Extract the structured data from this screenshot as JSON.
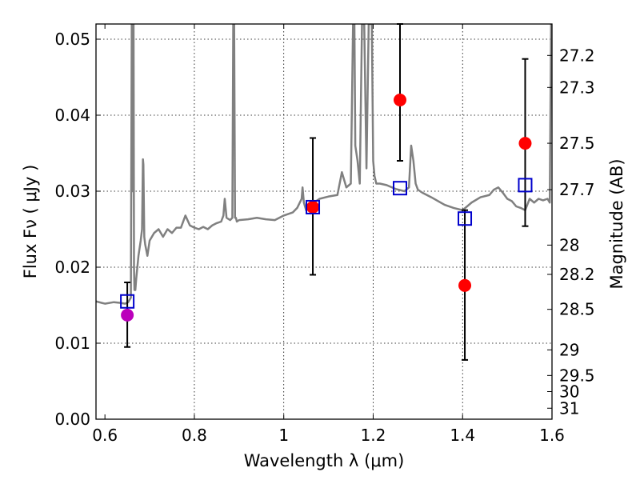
{
  "chart_data": {
    "type": "scatter",
    "xlabel": "Wavelength  λ (μm)",
    "ylabel": "Flux  Fν  ( μJy )",
    "ylabel_right": "Magnitude (AB)",
    "xlim": [
      0.58,
      1.6
    ],
    "ylim": [
      0.0,
      0.052
    ],
    "x_ticks": [
      0.6,
      0.8,
      1.0,
      1.2,
      1.4,
      1.6
    ],
    "x_tick_labels": [
      "0.6",
      "0.8",
      "1",
      "1.2",
      "1.4",
      "1.6"
    ],
    "y_ticks": [
      0.0,
      0.01,
      0.02,
      0.03,
      0.04,
      0.05
    ],
    "y_tick_labels": [
      "0.00",
      "0.01",
      "0.02",
      "0.03",
      "0.04",
      "0.05"
    ],
    "right_ticks": [
      {
        "label": "27.2",
        "value": 27.2
      },
      {
        "label": "27.3",
        "value": 27.3
      },
      {
        "label": "27.5",
        "value": 27.5
      },
      {
        "label": "27.7",
        "value": 27.7
      },
      {
        "label": "28",
        "value": 28.0
      },
      {
        "label": "28.2",
        "value": 28.2
      },
      {
        "label": "28.5",
        "value": 28.5
      },
      {
        "label": "29",
        "value": 29.0
      },
      {
        "label": "29.5",
        "value": 29.5
      },
      {
        "label": "30",
        "value": 30.0
      },
      {
        "label": "31",
        "value": 31.0
      }
    ],
    "grid": true,
    "colors": {
      "model": "#808080",
      "observed": "#ff0000",
      "observed_blue": "#bb00bb",
      "synthetic": "#0000cc",
      "errorbar": "#000000"
    },
    "series": [
      {
        "kind": "line",
        "x": [
          0.58,
          0.6,
          0.62,
          0.635,
          0.645,
          0.652,
          0.655,
          0.658,
          0.66,
          0.661,
          0.662,
          0.663,
          0.664,
          0.665,
          0.666,
          0.668,
          0.67,
          0.675,
          0.68,
          0.683,
          0.685,
          0.686,
          0.688,
          0.69,
          0.695,
          0.7,
          0.71,
          0.72,
          0.73,
          0.74,
          0.75,
          0.76,
          0.77,
          0.78,
          0.79,
          0.8,
          0.81,
          0.82,
          0.83,
          0.84,
          0.85,
          0.86,
          0.865,
          0.868,
          0.872,
          0.88,
          0.885,
          0.887,
          0.889,
          0.891,
          0.893,
          0.895,
          0.9,
          0.92,
          0.94,
          0.96,
          0.98,
          1.0,
          1.02,
          1.03,
          1.04,
          1.042,
          1.045,
          1.05,
          1.06,
          1.08,
          1.1,
          1.12,
          1.13,
          1.14,
          1.15,
          1.155,
          1.158,
          1.16,
          1.165,
          1.17,
          1.175,
          1.18,
          1.185,
          1.19,
          1.193,
          1.197,
          1.2,
          1.203,
          1.207,
          1.215,
          1.23,
          1.25,
          1.27,
          1.28,
          1.285,
          1.29,
          1.295,
          1.3,
          1.31,
          1.33,
          1.36,
          1.38,
          1.4,
          1.42,
          1.44,
          1.46,
          1.47,
          1.48,
          1.49,
          1.5,
          1.51,
          1.52,
          1.53,
          1.54,
          1.55,
          1.56,
          1.57,
          1.58,
          1.59,
          1.595,
          1.598,
          1.6
        ],
        "y": [
          0.0155,
          0.0152,
          0.0154,
          0.0153,
          0.0152,
          0.0154,
          0.0157,
          0.016,
          0.052,
          0.052,
          0.03,
          0.052,
          0.052,
          0.02,
          0.017,
          0.017,
          0.0185,
          0.0215,
          0.0235,
          0.025,
          0.0342,
          0.0335,
          0.024,
          0.023,
          0.0215,
          0.0235,
          0.0245,
          0.025,
          0.024,
          0.025,
          0.0245,
          0.0252,
          0.0252,
          0.0268,
          0.0255,
          0.0252,
          0.025,
          0.0253,
          0.025,
          0.0255,
          0.0258,
          0.026,
          0.0268,
          0.029,
          0.0265,
          0.0262,
          0.0265,
          0.052,
          0.052,
          0.0265,
          0.0265,
          0.026,
          0.0262,
          0.0263,
          0.0265,
          0.0263,
          0.0262,
          0.0268,
          0.0272,
          0.0278,
          0.029,
          0.0305,
          0.0285,
          0.0275,
          0.0282,
          0.029,
          0.0293,
          0.0295,
          0.0325,
          0.0305,
          0.031,
          0.052,
          0.052,
          0.036,
          0.034,
          0.031,
          0.052,
          0.052,
          0.033,
          0.052,
          0.052,
          0.052,
          0.034,
          0.032,
          0.031,
          0.031,
          0.0308,
          0.0303,
          0.03,
          0.0305,
          0.036,
          0.034,
          0.031,
          0.0302,
          0.0298,
          0.0292,
          0.0282,
          0.0278,
          0.0275,
          0.0285,
          0.0292,
          0.0295,
          0.0302,
          0.0305,
          0.0298,
          0.029,
          0.0287,
          0.028,
          0.0278,
          0.0275,
          0.029,
          0.0285,
          0.029,
          0.0288,
          0.029,
          0.0285,
          0.052,
          0.052
        ]
      },
      {
        "kind": "observed",
        "x": [
          0.65,
          1.065,
          1.26,
          1.405,
          1.54
        ],
        "y": [
          0.0137,
          0.0279,
          0.042,
          0.0176,
          0.0363
        ],
        "marker_colors": [
          "#bb00bb",
          "#ff0000",
          "#ff0000",
          "#ff0000",
          "#ff0000"
        ],
        "err_low": [
          0.0095,
          0.019,
          0.034,
          0.0078,
          0.0254
        ],
        "err_high": [
          0.018,
          0.037,
          0.052,
          0.0275,
          0.0474
        ]
      },
      {
        "kind": "synthetic",
        "x": [
          0.65,
          1.065,
          1.26,
          1.405,
          1.54
        ],
        "y": [
          0.0155,
          0.0279,
          0.0304,
          0.0264,
          0.0308
        ]
      }
    ]
  }
}
